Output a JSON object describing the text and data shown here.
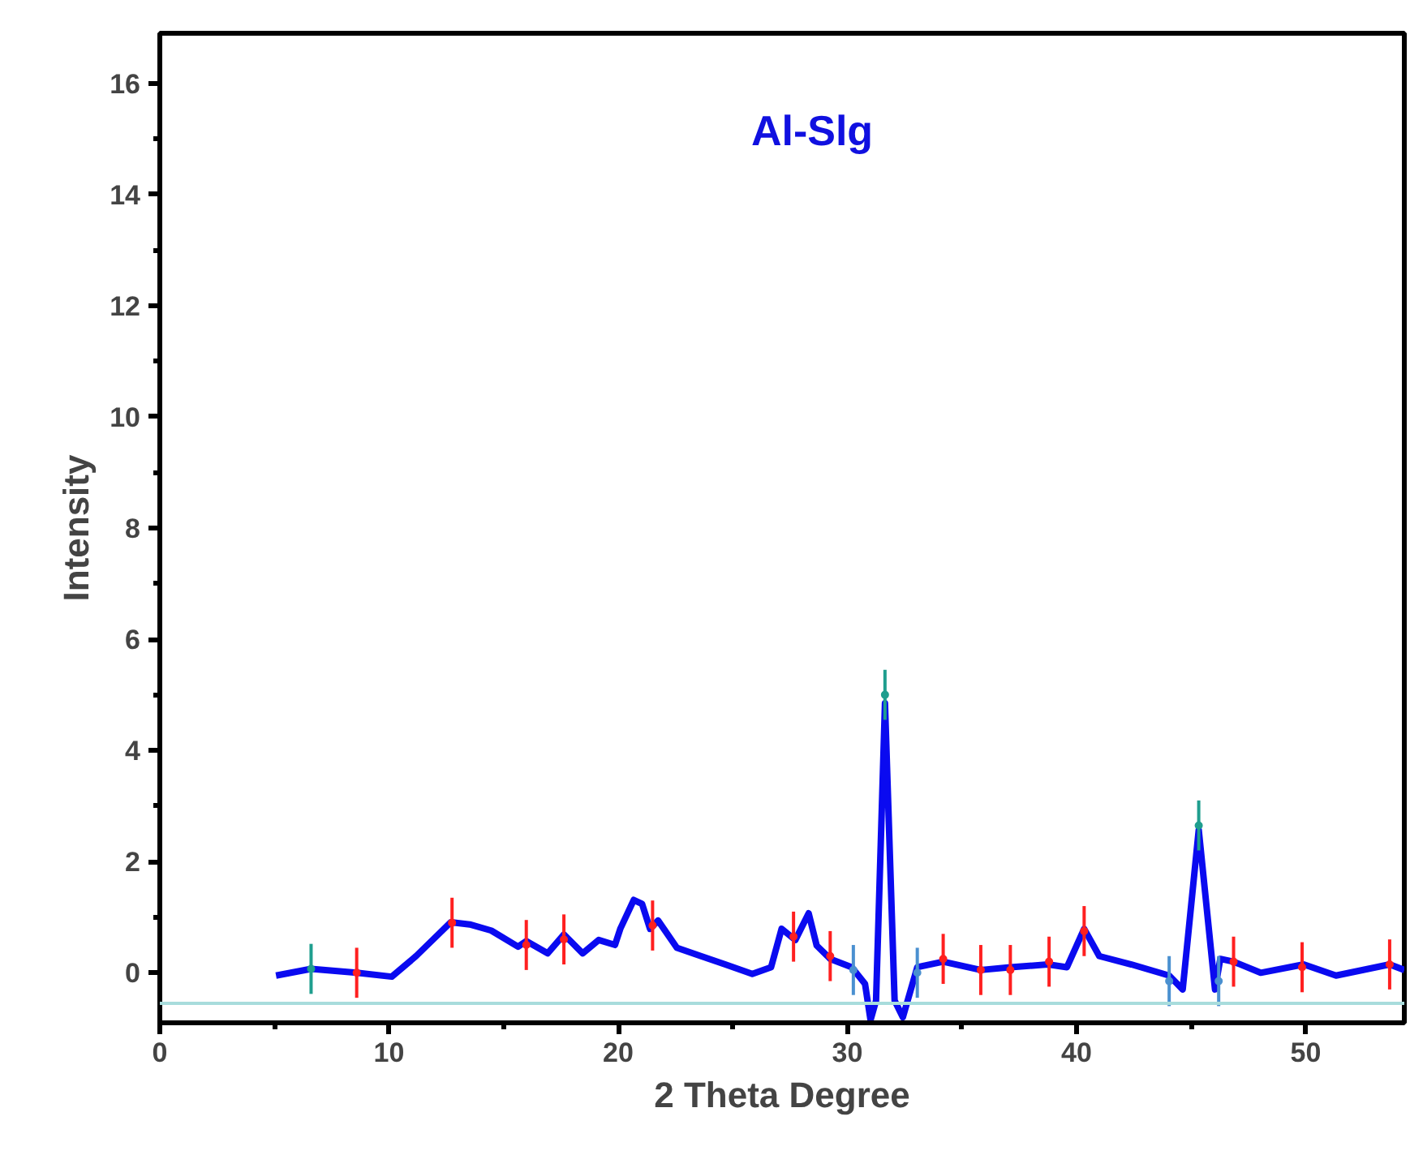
{
  "chart_data": {
    "type": "line",
    "title": "Al-Slg",
    "xlabel": "2 Theta Degree",
    "ylabel": "Intensity",
    "xlim": [
      0,
      54.3
    ],
    "ylim": [
      -0.9,
      16.9
    ],
    "xticks": [
      0,
      10,
      20,
      30,
      40,
      50
    ],
    "yticks": [
      0,
      2,
      4,
      6,
      8,
      10,
      12,
      14,
      16
    ],
    "grid": false,
    "ref_lines": [
      {
        "axis": "y",
        "value": -0.55,
        "color": "#a8dcdc"
      }
    ],
    "series": [
      {
        "color": "#0a0af0",
        "x": [
          5.07,
          6.6,
          8.59,
          10.12,
          11.18,
          12.7,
          13.52,
          14.46,
          15.63,
          15.99,
          16.92,
          17.63,
          18.45,
          19.15,
          19.86,
          20.09,
          20.68,
          21.04,
          21.39,
          21.74,
          22.56,
          23.61,
          24.67,
          25.85,
          26.67,
          27.13,
          27.73,
          28.31,
          28.66,
          29.25,
          30.19,
          30.77,
          31.01,
          31.25,
          31.64,
          32.06,
          32.42,
          33.05,
          34.18,
          35.82,
          37.11,
          38.75,
          39.58,
          40.33,
          40.99,
          42.39,
          44.04,
          44.63,
          45.33,
          46.04,
          46.27,
          46.85,
          48.03,
          49.91,
          51.32,
          53.66,
          54.3
        ],
        "values": [
          -0.05,
          0.07,
          0.0,
          -0.07,
          0.3,
          0.91,
          0.87,
          0.76,
          0.47,
          0.57,
          0.35,
          0.69,
          0.35,
          0.59,
          0.5,
          0.79,
          1.31,
          1.24,
          0.79,
          0.94,
          0.45,
          0.3,
          0.15,
          -0.02,
          0.1,
          0.79,
          0.59,
          1.07,
          0.49,
          0.25,
          0.1,
          -0.2,
          -0.85,
          -0.5,
          4.85,
          -0.5,
          -0.8,
          0.1,
          0.2,
          0.05,
          0.1,
          0.15,
          0.1,
          0.79,
          0.3,
          0.15,
          -0.05,
          -0.3,
          2.57,
          -0.3,
          0.25,
          0.2,
          0.0,
          0.15,
          -0.05,
          0.15,
          0.05
        ]
      },
      {
        "type": "scatter",
        "color": "#ff2020",
        "x": [
          8.59,
          12.75,
          15.99,
          17.63,
          21.5,
          27.65,
          29.25,
          34.18,
          35.82,
          37.11,
          38.8,
          40.33,
          46.85,
          49.84,
          53.66
        ],
        "values": [
          0.0,
          0.9,
          0.5,
          0.6,
          0.85,
          0.65,
          0.3,
          0.25,
          0.05,
          0.05,
          0.2,
          0.75,
          0.2,
          0.1,
          0.15
        ],
        "errors": [
          0.45,
          0.45,
          0.45,
          0.45,
          0.45,
          0.45,
          0.45,
          0.45,
          0.45,
          0.45,
          0.45,
          0.45,
          0.45,
          0.45,
          0.45
        ]
      },
      {
        "type": "scatter",
        "color": "#1f9e8e",
        "x": [
          6.6,
          31.64,
          45.33
        ],
        "values": [
          0.07,
          5.0,
          2.65
        ],
        "errors": [
          0.45,
          0.45,
          0.45
        ]
      },
      {
        "type": "scatter",
        "color": "#4a90d0",
        "x": [
          30.26,
          33.05,
          44.04,
          46.2
        ],
        "values": [
          0.05,
          0.0,
          -0.15,
          -0.15
        ],
        "errors": [
          0.45,
          0.45,
          0.45,
          0.45
        ]
      }
    ]
  }
}
